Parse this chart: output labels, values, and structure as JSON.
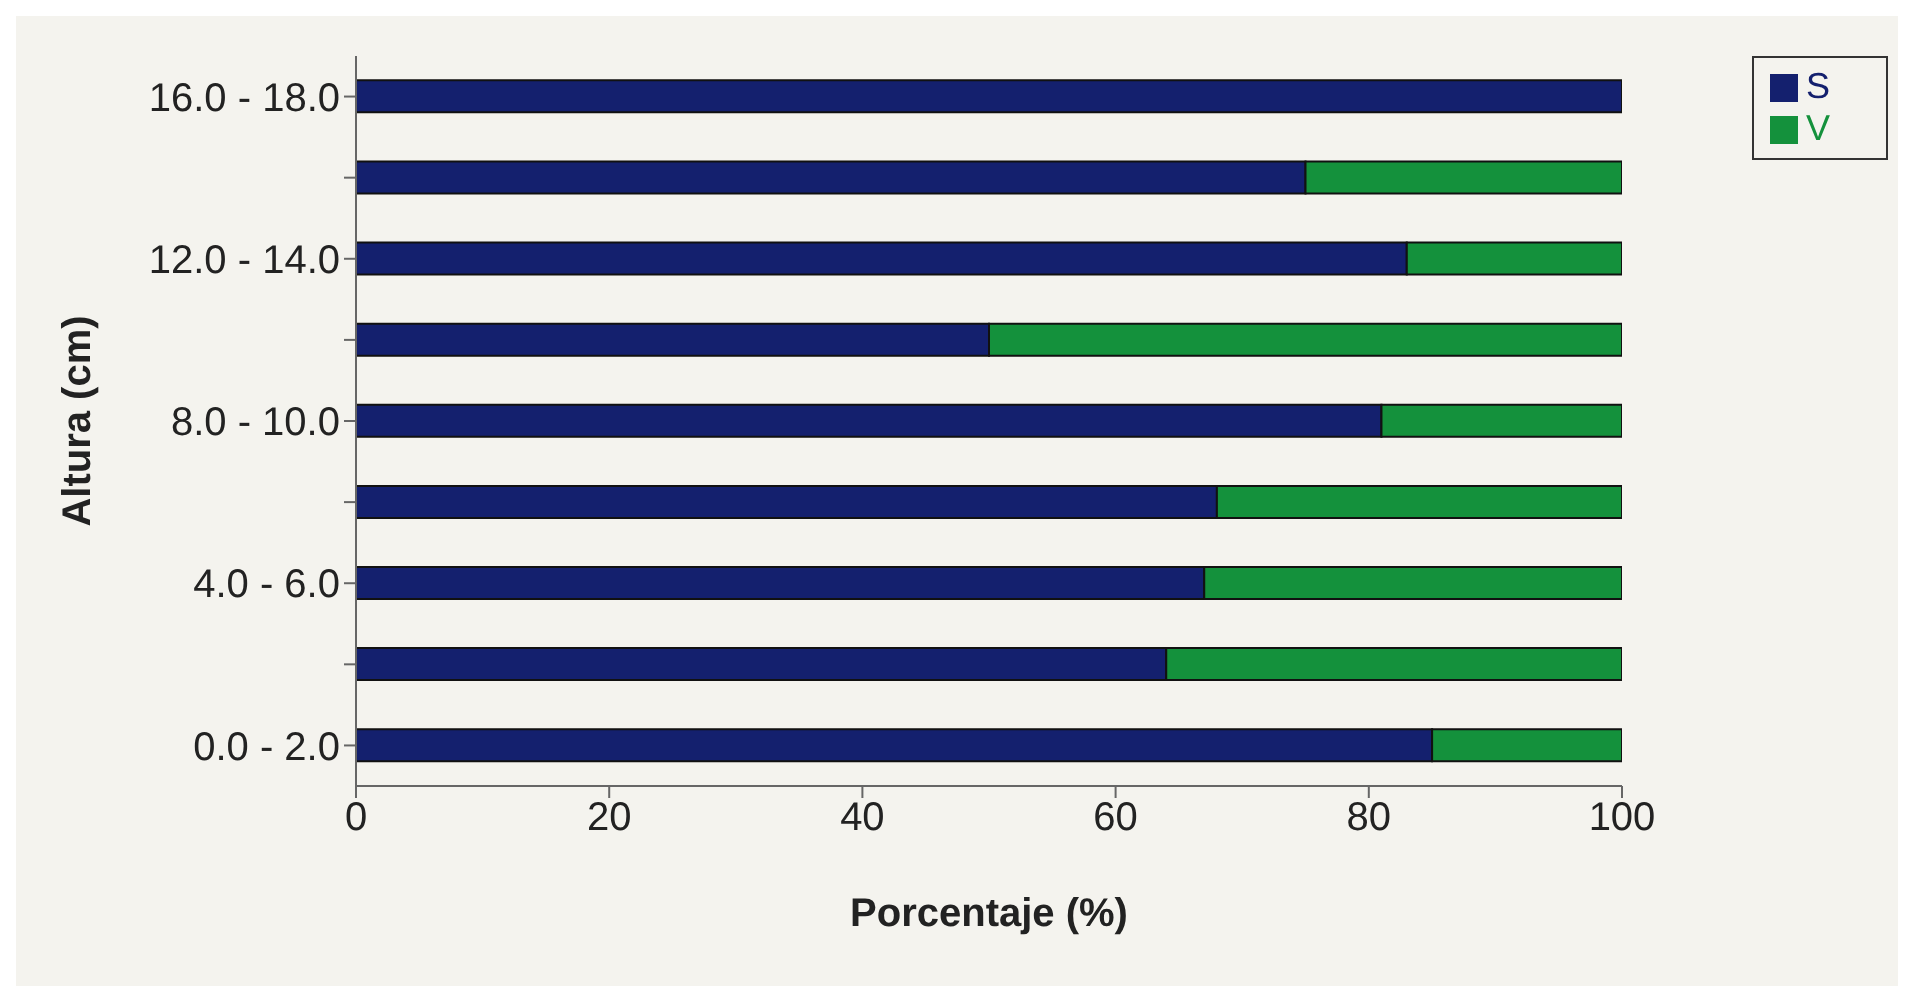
{
  "chart_data": {
    "type": "bar",
    "orientation": "horizontal",
    "stacked": true,
    "xlabel": "Porcentaje (%)",
    "ylabel": "Altura (cm)",
    "categories": [
      "16.0 - 18.0",
      null,
      "12.0 - 14.0",
      null,
      "8.0 - 10.0",
      null,
      "4.0 - 6.0",
      null,
      "0.0 - 2.0"
    ],
    "series": [
      {
        "name": "S",
        "color": "#14206e",
        "values": [
          100,
          75,
          83,
          50,
          81,
          68,
          67,
          64,
          85
        ]
      },
      {
        "name": "V",
        "color": "#14913c",
        "values": [
          0,
          25,
          17,
          50,
          19,
          32,
          33,
          36,
          15
        ]
      }
    ],
    "xlim": [
      0,
      100
    ],
    "xticks": [
      0,
      20,
      40,
      60,
      80,
      100
    ],
    "grid": false,
    "legend": "top right"
  }
}
